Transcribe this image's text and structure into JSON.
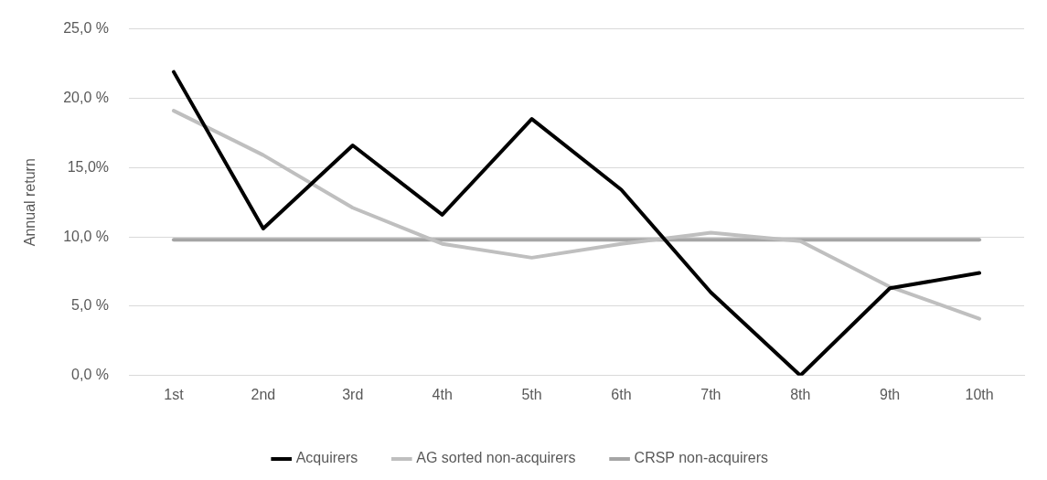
{
  "chart_data": {
    "type": "line",
    "ylabel": "Annual return",
    "categories": [
      "1st",
      "2nd",
      "3rd",
      "4th",
      "5th",
      "6th",
      "7th",
      "8th",
      "9th",
      "10th"
    ],
    "series": [
      {
        "name": "Acquirers",
        "color": "#000000",
        "values": [
          21.9,
          10.6,
          16.6,
          11.6,
          18.5,
          13.4,
          6.0,
          0.0,
          6.3,
          7.4
        ]
      },
      {
        "name": "AG sorted non-acquirers",
        "color": "#bfbfbf",
        "values": [
          19.1,
          15.9,
          12.1,
          9.5,
          8.5,
          9.5,
          10.3,
          9.7,
          6.4,
          4.1
        ]
      },
      {
        "name": "CRSP non-acquirers",
        "color": "#a5a5a5",
        "values": [
          9.8,
          9.8,
          9.8,
          9.8,
          9.8,
          9.8,
          9.8,
          9.8,
          9.8,
          9.8
        ]
      }
    ],
    "ylim": [
      0,
      25
    ],
    "yticks": [
      {
        "value": 0,
        "label": "0,0 %"
      },
      {
        "value": 5,
        "label": "5,0 %"
      },
      {
        "value": 10,
        "label": "10,0 %"
      },
      {
        "value": 15,
        "label": "15,0%"
      },
      {
        "value": 20,
        "label": "20,0 %"
      },
      {
        "value": 25,
        "label": "25,0 %"
      }
    ],
    "grid": "y",
    "legend": "bottom",
    "marker": "none",
    "line_style": "solid"
  }
}
